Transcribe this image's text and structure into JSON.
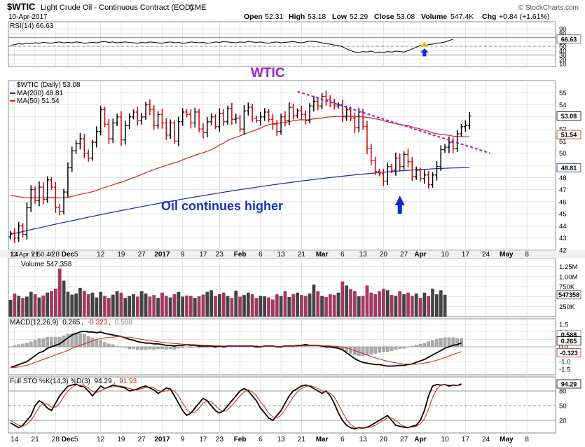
{
  "header": {
    "symbol": "$WTIC",
    "name": "Light Crude Oil - Continuous Contract (EOD)",
    "exchange": "CME",
    "date": "10-Apr-2017",
    "brand": "© StockCharts.com",
    "quote": {
      "open_label": "Open",
      "open": "52.31",
      "high_label": "High",
      "high": "53.18",
      "low_label": "Low",
      "low": "52.29",
      "close_label": "Close",
      "close": "53.08",
      "volume_label": "Volume",
      "volume": "547.4K",
      "chg_label": "Chg",
      "chg": "+0.84 (+1.61%)"
    }
  },
  "colors": {
    "up_bar": "#000000",
    "down_bar": "#cc0000",
    "ma200": "#1a2b9e",
    "ma50": "#cc2222",
    "vol_up": "#444444",
    "vol_down": "#a23a63",
    "trendline": "#a020c0",
    "annotation_title": "#9b1fc9",
    "annotation_text": "#1530c8",
    "arrow": "#1028d8",
    "grid": "#d8d8d8"
  },
  "chart_data": [
    {
      "type": "line",
      "panel": "rsi",
      "legend": "RSI(14) 66.63",
      "value_badge": "66.63",
      "ylim": [
        10,
        100
      ],
      "yticks": [
        "90",
        "80",
        "70",
        "60",
        "50",
        "40",
        "30",
        "20",
        "10"
      ],
      "reference_lines": [
        70,
        50,
        30
      ],
      "values": [
        52,
        54,
        56,
        55,
        57,
        56,
        58,
        57,
        59,
        58,
        57,
        59,
        60,
        58,
        59,
        58,
        60,
        59,
        57,
        58,
        59,
        58,
        60,
        61,
        59,
        60,
        58,
        59,
        60,
        59,
        58,
        57,
        59,
        58,
        60,
        59,
        58,
        57,
        59,
        60,
        58,
        59,
        57,
        58,
        60,
        59,
        58,
        59,
        57,
        58,
        60,
        59,
        61,
        60,
        59,
        58,
        60,
        59,
        61,
        60,
        59,
        60,
        58,
        57,
        59,
        60,
        58,
        59,
        60,
        61,
        59,
        58,
        60,
        62,
        61,
        60,
        58,
        56,
        55,
        53,
        52,
        49,
        44,
        40,
        37,
        36,
        38,
        37,
        39,
        36,
        37,
        36,
        38,
        37,
        39,
        38,
        37,
        40,
        44,
        48,
        52,
        50,
        54,
        55,
        57,
        58,
        60,
        63,
        66.63
      ]
    },
    {
      "type": "bar",
      "panel": "price",
      "style": "ohlc",
      "legend": [
        "$WTIC (Daily) 53.08",
        "MA(200) 48.81",
        "MA(50) 51.54"
      ],
      "ylim": [
        42,
        56
      ],
      "yticks": [
        "55",
        "54",
        "53",
        "52",
        "51",
        "50",
        "49",
        "48",
        "47",
        "46",
        "45",
        "44",
        "43",
        "42"
      ],
      "value_badges": {
        "close": "53.08",
        "ma50": "51.54",
        "ma200": "48.81"
      },
      "closes": [
        43.4,
        43.0,
        44.0,
        43.3,
        45.5,
        47.0,
        46.1,
        47.2,
        46.2,
        47.8,
        47.2,
        45.5,
        45.2,
        46.8,
        48.8,
        50.2,
        50.8,
        51.2,
        50.0,
        49.6,
        50.9,
        51.8,
        53.6,
        52.4,
        51.2,
        52.5,
        53.0,
        51.1,
        52.3,
        53.0,
        53.4,
        52.7,
        53.0,
        54.0,
        53.6,
        52.3,
        53.2,
        52.5,
        51.5,
        52.5,
        51.0,
        52.6,
        53.4,
        53.2,
        52.5,
        53.4,
        52.0,
        51.7,
        52.6,
        53.0,
        52.2,
        53.3,
        52.6,
        53.7,
        52.8,
        52.9,
        52.0,
        53.5,
        53.8,
        52.9,
        52.7,
        53.0,
        53.4,
        52.8,
        52.4,
        51.8,
        53.0,
        52.7,
        53.8,
        53.1,
        53.5,
        53.2,
        52.7,
        53.9,
        54.3,
        53.9,
        54.7,
        54.4,
        54.2,
        53.9,
        54.0,
        53.0,
        53.6,
        52.9,
        52.1,
        53.4,
        52.2,
        50.4,
        49.4,
        48.5,
        48.3,
        47.7,
        48.9,
        48.6,
        49.6,
        48.9,
        49.9,
        49.3,
        48.1,
        48.6,
        47.9,
        48.2,
        47.4,
        48.2,
        48.9,
        50.3,
        50.5,
        50.9,
        50.4,
        51.6,
        52.2,
        52.3,
        53.08
      ],
      "x_ticks": [
        {
          "label": "14",
          "index": 1
        },
        {
          "label": "21",
          "index": 6
        },
        {
          "label": "28",
          "index": 11
        },
        {
          "label": "Dec",
          "index": 14,
          "bold": true
        },
        {
          "label": "5",
          "index": 16
        },
        {
          "label": "12",
          "index": 22
        },
        {
          "label": "19",
          "index": 27
        },
        {
          "label": "27",
          "index": 32
        },
        {
          "label": "2017",
          "index": 37,
          "bold": true
        },
        {
          "label": "9",
          "index": 42
        },
        {
          "label": "17",
          "index": 47
        },
        {
          "label": "23",
          "index": 51
        },
        {
          "label": "Feb",
          "index": 56,
          "bold": true
        },
        {
          "label": "6",
          "index": 61
        },
        {
          "label": "13",
          "index": 66
        },
        {
          "label": "21",
          "index": 71
        },
        {
          "label": "Mar",
          "index": 76,
          "bold": true
        },
        {
          "label": "6",
          "index": 81
        },
        {
          "label": "13",
          "index": 86
        },
        {
          "label": "20",
          "index": 91
        },
        {
          "label": "27",
          "index": 96
        },
        {
          "label": "Apr",
          "index": 100,
          "bold": true
        },
        {
          "label": "10",
          "index": 106
        },
        {
          "label": "17",
          "index": 111
        },
        {
          "label": "24",
          "index": 116
        },
        {
          "label": "May",
          "index": 121,
          "bold": true
        },
        {
          "label": "8",
          "index": 126
        }
      ],
      "annotations": {
        "title": "WTIC",
        "caption": "Oil continues higher",
        "corner_label": "13 Apr Y!50.40"
      }
    },
    {
      "type": "bar",
      "panel": "volume",
      "legend": "Volume 547,358",
      "value_badge": "547358",
      "ylim": [
        0,
        1400000
      ],
      "yticks": [
        "1.25M",
        "1.00M",
        "750K",
        "500K",
        "250K"
      ],
      "values": [
        420000,
        580000,
        520000,
        470000,
        500000,
        620000,
        560000,
        480000,
        530000,
        600000,
        640000,
        700000,
        1200000,
        900000,
        620000,
        550000,
        580000,
        720000,
        650000,
        560000,
        600000,
        480000,
        620000,
        520000,
        470000,
        550000,
        640000,
        600000,
        470000,
        520000,
        560000,
        500000,
        640000,
        580000,
        500000,
        540000,
        470000,
        600000,
        520000,
        480000,
        560000,
        620000,
        500000,
        530000,
        520000,
        470000,
        510000,
        550000,
        620000,
        660000,
        520000,
        560000,
        600000,
        520000,
        470000,
        650000,
        500000,
        540000,
        600000,
        560000,
        470000,
        520000,
        510000,
        480000,
        430000,
        560000,
        520000,
        640000,
        490000,
        560000,
        600000,
        540000,
        520000,
        580000,
        800000,
        640000,
        520000,
        490000,
        560000,
        540000,
        600000,
        880000,
        780000,
        690000,
        640000,
        510000,
        520000,
        780000,
        600000,
        560000,
        640000,
        700000,
        660000,
        540000,
        520000,
        640000,
        560000,
        600000,
        520000,
        580000,
        470000,
        600000,
        520000,
        700000,
        560000,
        660000,
        547358
      ]
    },
    {
      "type": "line",
      "panel": "macd",
      "legend": [
        "MACD(12,26,9)",
        "0.265",
        "-0.323",
        "0.588"
      ],
      "value_badges": [
        "0.588",
        "0.265",
        "-0.323"
      ],
      "ylim": [
        -1.7,
        1.7
      ],
      "yticks": [
        "1.5",
        "1.0",
        "0.5",
        "0.0",
        "-0.5",
        "-1.0",
        "-1.5"
      ],
      "series": [
        {
          "values": [
            -1.4,
            -1.3,
            -1.2,
            -1.1,
            -1.0,
            -0.8,
            -0.6,
            -0.4,
            -0.3,
            -0.1,
            0.0,
            0.1,
            0.2,
            0.4,
            0.6,
            0.8,
            0.9,
            1.0,
            1.05,
            1.0,
            1.0,
            0.95,
            1.0,
            0.9,
            0.85,
            0.8,
            0.75,
            0.7,
            0.6,
            0.5,
            0.45,
            0.35,
            0.3,
            0.25,
            0.25,
            0.2,
            0.2,
            0.15,
            0.1,
            0.1,
            0.05,
            0.1,
            0.1,
            0.15,
            0.1,
            0.1,
            0.05,
            0.05,
            0.05,
            0.05,
            0.0,
            0.05,
            0.0,
            0.05,
            0.05,
            0.05,
            0.05,
            0.05,
            0.05,
            0.05,
            0.0,
            0.0,
            0.05,
            0.05,
            0.05,
            0.0,
            0.0,
            0.05,
            0.05,
            0.05,
            0.1,
            0.1,
            0.15,
            0.1,
            0.1,
            0.1,
            0.05,
            0.0,
            0.0,
            -0.05,
            -0.1,
            -0.2,
            -0.4,
            -0.6,
            -0.8,
            -0.95,
            -1.05,
            -1.1,
            -1.15,
            -1.2,
            -1.2,
            -1.25,
            -1.3,
            -1.3,
            -1.28,
            -1.25,
            -1.25,
            -1.2,
            -1.15,
            -1.05,
            -0.95,
            -0.85,
            -0.7,
            -0.55,
            -0.4,
            -0.25,
            -0.1,
            0.0,
            0.1,
            0.15,
            0.265
          ]
        },
        {
          "values": [
            -1.4,
            -1.4,
            -1.35,
            -1.3,
            -1.25,
            -1.15,
            -1.05,
            -0.95,
            -0.85,
            -0.75,
            -0.65,
            -0.55,
            -0.45,
            -0.35,
            -0.25,
            -0.1,
            0.0,
            0.1,
            0.2,
            0.3,
            0.4,
            0.5,
            0.55,
            0.6,
            0.65,
            0.65,
            0.7,
            0.7,
            0.65,
            0.65,
            0.6,
            0.55,
            0.5,
            0.45,
            0.4,
            0.38,
            0.35,
            0.3,
            0.28,
            0.25,
            0.22,
            0.2,
            0.18,
            0.17,
            0.15,
            0.14,
            0.12,
            0.1,
            0.1,
            0.08,
            0.07,
            0.06,
            0.05,
            0.05,
            0.05,
            0.05,
            0.05,
            0.05,
            0.05,
            0.05,
            0.05,
            0.04,
            0.04,
            0.04,
            0.04,
            0.04,
            0.04,
            0.04,
            0.04,
            0.05,
            0.06,
            0.07,
            0.08,
            0.08,
            0.09,
            0.09,
            0.08,
            0.07,
            0.06,
            0.04,
            0.02,
            -0.02,
            -0.08,
            -0.15,
            -0.25,
            -0.35,
            -0.45,
            -0.55,
            -0.65,
            -0.75,
            -0.82,
            -0.9,
            -0.97,
            -1.03,
            -1.08,
            -1.12,
            -1.15,
            -1.17,
            -1.18,
            -1.17,
            -1.14,
            -1.1,
            -1.05,
            -0.98,
            -0.9,
            -0.82,
            -0.72,
            -0.62,
            -0.52,
            -0.42,
            -0.323
          ]
        }
      ],
      "histogram": [
        0.0,
        0.1,
        0.15,
        0.2,
        0.25,
        0.35,
        0.45,
        0.55,
        0.55,
        0.65,
        0.65,
        0.65,
        0.65,
        0.75,
        0.85,
        0.9,
        0.9,
        0.9,
        0.85,
        0.7,
        0.6,
        0.45,
        0.45,
        0.3,
        0.2,
        0.15,
        0.05,
        0.0,
        -0.05,
        -0.15,
        -0.15,
        -0.2,
        -0.2,
        -0.2,
        -0.15,
        -0.18,
        -0.15,
        -0.15,
        -0.18,
        -0.15,
        -0.17,
        -0.1,
        -0.08,
        -0.02,
        -0.05,
        -0.04,
        -0.07,
        -0.05,
        -0.05,
        -0.03,
        -0.07,
        -0.01,
        -0.05,
        0.0,
        0.0,
        0.0,
        0.0,
        0.0,
        0.0,
        0.0,
        -0.05,
        -0.04,
        0.01,
        0.01,
        0.01,
        -0.04,
        -0.04,
        0.01,
        0.01,
        0.0,
        0.04,
        0.03,
        0.07,
        0.02,
        0.01,
        0.01,
        -0.03,
        -0.07,
        -0.06,
        -0.09,
        -0.12,
        -0.18,
        -0.32,
        -0.45,
        -0.55,
        -0.6,
        -0.6,
        -0.55,
        -0.5,
        -0.45,
        -0.38,
        -0.35,
        -0.33,
        -0.27,
        -0.2,
        -0.13,
        -0.1,
        -0.03,
        0.03,
        0.12,
        0.19,
        0.25,
        0.35,
        0.43,
        0.5,
        0.57,
        0.62,
        0.62,
        0.62,
        0.57,
        0.588
      ]
    },
    {
      "type": "line",
      "panel": "stochastic",
      "legend": [
        "Full STO %K(14,3) %D(3)",
        "94.29",
        "91.93"
      ],
      "value_badge": "94.29",
      "ylim": [
        0,
        100
      ],
      "yticks": [
        "80",
        "50",
        "20"
      ],
      "reference_lines": [
        80,
        50,
        20
      ],
      "series": [
        {
          "values": [
            15,
            10,
            5,
            10,
            20,
            30,
            50,
            60,
            55,
            45,
            40,
            55,
            70,
            80,
            90,
            92,
            94,
            90,
            88,
            80,
            70,
            80,
            90,
            85,
            88,
            92,
            90,
            88,
            86,
            80,
            82,
            84,
            88,
            90,
            86,
            82,
            75,
            80,
            86,
            84,
            70,
            55,
            40,
            30,
            35,
            45,
            55,
            65,
            60,
            50,
            40,
            35,
            40,
            50,
            60,
            70,
            80,
            85,
            80,
            70,
            60,
            45,
            35,
            25,
            20,
            30,
            40,
            55,
            70,
            80,
            85,
            90,
            92,
            90,
            85,
            80,
            75,
            80,
            70,
            55,
            35,
            20,
            10,
            5,
            3,
            5,
            4,
            6,
            10,
            15,
            20,
            25,
            30,
            20,
            10,
            8,
            6,
            5,
            8,
            10,
            20,
            40,
            70,
            90,
            93,
            92,
            93,
            90,
            92,
            91,
            94.29
          ]
        },
        {
          "values": [
            20,
            15,
            10,
            8,
            12,
            20,
            33,
            47,
            55,
            53,
            47,
            47,
            55,
            68,
            80,
            87,
            92,
            92,
            91,
            86,
            79,
            77,
            80,
            85,
            88,
            88,
            90,
            90,
            88,
            85,
            83,
            82,
            85,
            87,
            88,
            86,
            81,
            79,
            80,
            83,
            80,
            70,
            55,
            42,
            35,
            37,
            45,
            55,
            60,
            58,
            50,
            42,
            38,
            42,
            50,
            60,
            70,
            78,
            82,
            78,
            70,
            58,
            47,
            35,
            27,
            25,
            30,
            42,
            55,
            68,
            78,
            85,
            89,
            91,
            89,
            85,
            80,
            78,
            75,
            68,
            53,
            37,
            22,
            12,
            6,
            4,
            4,
            5,
            7,
            10,
            15,
            20,
            25,
            25,
            20,
            13,
            8,
            6,
            6,
            8,
            13,
            23,
            43,
            67,
            84,
            92,
            93,
            92,
            92,
            91,
            91.93
          ]
        }
      ]
    }
  ]
}
